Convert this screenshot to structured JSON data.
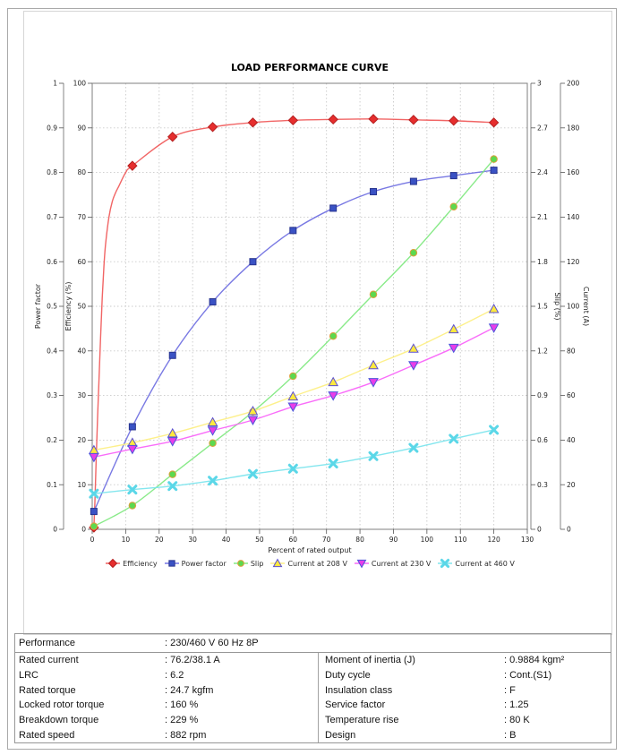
{
  "chart_data": {
    "type": "line",
    "title": "LOAD PERFORMANCE CURVE",
    "xlabel": "Percent of rated output",
    "x_axis": {
      "min": 0,
      "max": 130,
      "step": 10
    },
    "x": [
      0.5,
      12,
      24,
      36,
      48,
      60,
      72,
      84,
      96,
      108,
      120
    ],
    "axes": [
      {
        "id": "pf",
        "label": "Power factor",
        "min": 0,
        "max": 1,
        "step": 0.1,
        "side": "left"
      },
      {
        "id": "eff",
        "label": "Efficiency (%)",
        "min": 0,
        "max": 100,
        "step": 10,
        "side": "left"
      },
      {
        "id": "slip",
        "label": "Slip (%)",
        "min": 0,
        "max": 3,
        "step": 0.3,
        "side": "right"
      },
      {
        "id": "cur",
        "label": "Current (A)",
        "min": 0,
        "max": 200,
        "step": 20,
        "side": "right"
      }
    ],
    "grid": true,
    "legend_position": "bottom",
    "series": [
      {
        "name": "Efficiency",
        "axis": "eff",
        "marker": "diamond",
        "line_color": "#f05454",
        "marker_fill": "#e62e2e",
        "marker_edge": "#b51f1f",
        "values": [
          0.4,
          81.5,
          88.0,
          90.2,
          91.2,
          91.7,
          91.9,
          92.0,
          91.8,
          91.6,
          91.2
        ]
      },
      {
        "name": "Power factor",
        "axis": "pf",
        "marker": "square",
        "line_color": "#6a6ae0",
        "marker_fill": "#3a52c4",
        "marker_edge": "#28348f",
        "values": [
          0.04,
          0.23,
          0.39,
          0.51,
          0.6,
          0.67,
          0.72,
          0.757,
          0.78,
          0.793,
          0.805
        ]
      },
      {
        "name": "Slip",
        "axis": "slip",
        "marker": "circle",
        "line_color": "#7ce87c",
        "marker_fill": "#5cd94f",
        "marker_edge": "#dc9f3c",
        "values": [
          0.02,
          0.16,
          0.37,
          0.58,
          0.79,
          1.03,
          1.3,
          1.58,
          1.86,
          2.17,
          2.49
        ]
      },
      {
        "name": "Current at 208 V",
        "axis": "cur",
        "marker": "triangle-up",
        "line_color": "#fdee7e",
        "marker_fill": "#fde93d",
        "marker_edge": "#5c50d2",
        "values": [
          35.5,
          38.8,
          43.0,
          48.0,
          53.0,
          59.6,
          66.0,
          73.6,
          81.0,
          89.7,
          98.8
        ]
      },
      {
        "name": "Current at 230 V",
        "axis": "cur",
        "marker": "triangle-down",
        "line_color": "#f85df8",
        "marker_fill": "#e93de9",
        "marker_edge": "#4b56da",
        "values": [
          32.4,
          36.0,
          39.5,
          44.3,
          49.0,
          55.0,
          60.0,
          66.0,
          73.6,
          81.4,
          90.4
        ]
      },
      {
        "name": "Current at 460 V",
        "axis": "cur",
        "marker": "x",
        "line_color": "#77e3ec",
        "marker_fill": "#5bd7e8",
        "marker_edge": "#5bd7e8",
        "values": [
          16.0,
          17.8,
          19.4,
          21.8,
          24.8,
          27.2,
          29.5,
          32.8,
          36.5,
          40.6,
          44.6
        ]
      }
    ],
    "efficiency_curve_knee": [
      [
        0.5,
        0.4
      ],
      [
        0.8,
        6
      ],
      [
        1.2,
        16
      ],
      [
        1.6,
        25
      ],
      [
        2,
        33
      ],
      [
        2.5,
        43
      ],
      [
        3,
        52
      ],
      [
        3.5,
        59
      ],
      [
        4,
        64
      ],
      [
        5,
        70
      ],
      [
        6,
        73.5
      ],
      [
        7,
        75.5
      ],
      [
        8,
        77
      ],
      [
        10,
        80
      ],
      [
        12,
        81.5
      ]
    ]
  },
  "spec_table": {
    "header": {
      "label": "Performance",
      "value": ": 230/460 V 60 Hz 8P"
    },
    "rows": [
      {
        "l1": "Rated current",
        "v1": ": 76.2/38.1 A",
        "l2": "Moment of inertia (J)",
        "v2": ": 0.9884 kgm²"
      },
      {
        "l1": "LRC",
        "v1": ": 6.2",
        "l2": "Duty cycle",
        "v2": ": Cont.(S1)"
      },
      {
        "l1": "Rated torque",
        "v1": ": 24.7 kgfm",
        "l2": "Insulation class",
        "v2": ": F"
      },
      {
        "l1": "Locked rotor torque",
        "v1": ": 160 %",
        "l2": "Service factor",
        "v2": ": 1.25"
      },
      {
        "l1": "Breakdown torque",
        "v1": ": 229 %",
        "l2": "Temperature rise",
        "v2": ": 80 K"
      },
      {
        "l1": "Rated speed",
        "v1": ": 882 rpm",
        "l2": "Design",
        "v2": ": B"
      }
    ]
  }
}
